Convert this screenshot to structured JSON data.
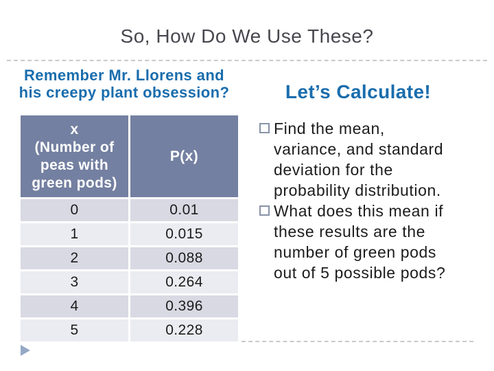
{
  "slide": {
    "title": "So, How Do We Use These?",
    "left_heading_lines": [
      "Remember Mr. Llorens and",
      "his creepy plant obsession?"
    ],
    "right_heading": "Let’s Calculate!"
  },
  "table": {
    "col1_header_line1": "x",
    "col1_header_line2": "(Number of peas with green pods)",
    "col2_header": "P(x)",
    "rows": [
      {
        "x": "0",
        "px": "0.01"
      },
      {
        "x": "1",
        "px": "0.015"
      },
      {
        "x": "2",
        "px": "0.088"
      },
      {
        "x": "3",
        "px": "0.264"
      },
      {
        "x": "4",
        "px": "0.396"
      },
      {
        "x": "5",
        "px": "0.228"
      }
    ]
  },
  "bullets": [
    "Find the mean, variance, and standard deviation for the probability distribution.",
    "What does this mean if these results are the number of green pods out of 5 possible pods?"
  ],
  "icons": {
    "next_slide_triangle": "play-triangle"
  },
  "colors": {
    "heading_blue": "#1a6dad",
    "title_gray": "#47474e",
    "table_header_bg": "#7480a1",
    "row_dark": "#d8d9e2",
    "row_light": "#ebecf1",
    "dashed_line": "#c7c9cd",
    "triangle": "#95a9c6"
  },
  "chart_data": {
    "type": "table",
    "columns": [
      "x (Number of peas with green pods)",
      "P(x)"
    ],
    "x": [
      0,
      1,
      2,
      3,
      4,
      5
    ],
    "P_x": [
      0.01,
      0.015,
      0.088,
      0.264,
      0.396,
      0.228
    ]
  }
}
